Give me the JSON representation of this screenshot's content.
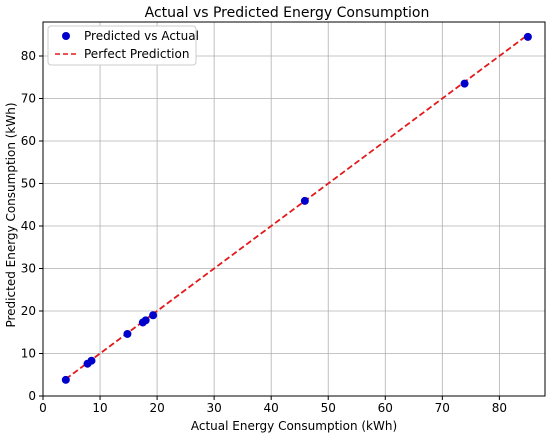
{
  "chart_data": {
    "type": "scatter",
    "title": "Actual vs Predicted Energy Consumption",
    "xlabel": "Actual Energy Consumption (kWh)",
    "ylabel": "Predicted Energy Consumption (kWh)",
    "xlim": [
      0,
      88
    ],
    "ylim": [
      0,
      88
    ],
    "xticks": [
      0,
      10,
      20,
      30,
      40,
      50,
      60,
      70,
      80
    ],
    "yticks": [
      0,
      10,
      20,
      30,
      40,
      50,
      60,
      70,
      80
    ],
    "grid": true,
    "legend_position": "upper-left",
    "series": [
      {
        "name": "Predicted vs Actual",
        "kind": "scatter",
        "color": "#0000cc",
        "points": [
          {
            "x": 4.0,
            "y": 3.8
          },
          {
            "x": 7.8,
            "y": 7.6
          },
          {
            "x": 8.5,
            "y": 8.3
          },
          {
            "x": 14.8,
            "y": 14.6
          },
          {
            "x": 17.5,
            "y": 17.3
          },
          {
            "x": 18.0,
            "y": 17.8
          },
          {
            "x": 19.3,
            "y": 19.0
          },
          {
            "x": 45.9,
            "y": 45.9
          },
          {
            "x": 73.9,
            "y": 73.5
          },
          {
            "x": 85.0,
            "y": 84.5
          }
        ]
      },
      {
        "name": "Perfect Prediction",
        "kind": "line",
        "style": "dashed",
        "color": "#e31a1c",
        "points": [
          {
            "x": 4.0,
            "y": 4.0
          },
          {
            "x": 85.0,
            "y": 85.0
          }
        ]
      }
    ]
  }
}
